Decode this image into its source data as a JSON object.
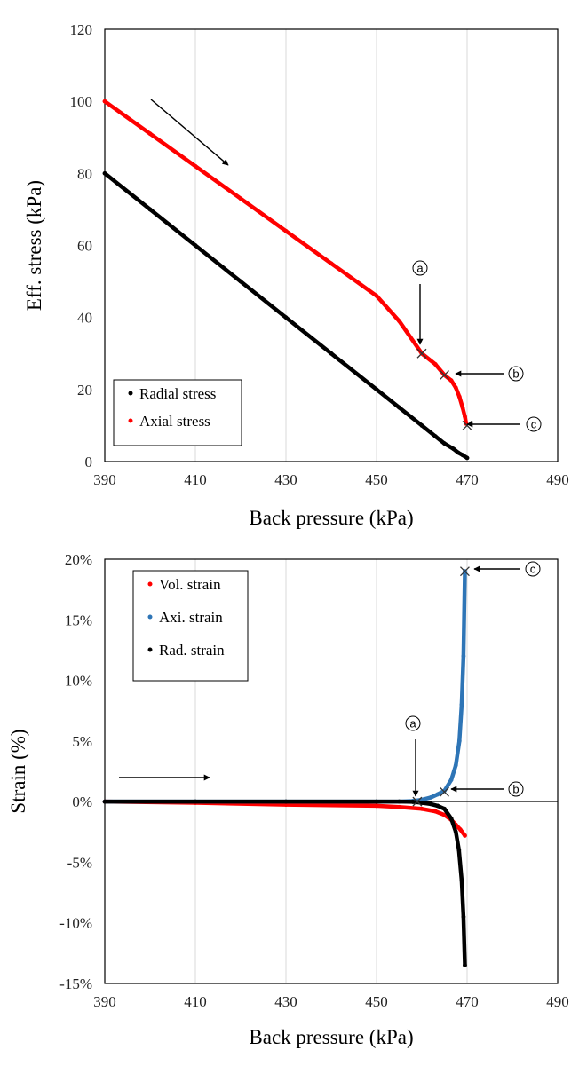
{
  "chart_data": [
    {
      "type": "scatter",
      "xlabel": "Back pressure (kPa)",
      "ylabel": "Eff. stress (kPa)",
      "xlim": [
        390,
        490
      ],
      "ylim": [
        0,
        120
      ],
      "x_ticks": [
        390,
        410,
        430,
        450,
        470,
        490
      ],
      "y_ticks": [
        0,
        20,
        40,
        60,
        80,
        100,
        120
      ],
      "x_tick_labels": [
        "390",
        "410",
        "430",
        "450",
        "470",
        "490"
      ],
      "y_tick_labels": [
        "0",
        "20",
        "40",
        "60",
        "80",
        "100",
        "120"
      ],
      "grid": "vertical",
      "legend_position": "bottom-left",
      "series": [
        {
          "name": "Radial stress",
          "color": "#000000",
          "x": [
            390,
            400,
            410,
            420,
            430,
            440,
            450,
            455,
            460,
            463,
            465,
            467,
            468,
            469,
            470
          ],
          "y": [
            80,
            70,
            60,
            50,
            40,
            30,
            20,
            15,
            10,
            7,
            5,
            3.5,
            2.5,
            1.8,
            1
          ]
        },
        {
          "name": "Axial stress",
          "color": "#ff0000",
          "x": [
            390,
            400,
            410,
            420,
            430,
            440,
            450,
            455,
            460,
            463,
            465,
            466.5,
            467.5,
            468.3,
            469,
            469.5,
            469.8
          ],
          "y": [
            100,
            91,
            82,
            73,
            64,
            55,
            46,
            39,
            30,
            27,
            24,
            22.5,
            20.5,
            18,
            15,
            12.5,
            10.5
          ]
        }
      ],
      "annotations": [
        {
          "label": "ⓐ",
          "x": 460,
          "y": 30,
          "type": "cross"
        },
        {
          "label": "ⓑ",
          "x": 465,
          "y": 24,
          "type": "cross"
        },
        {
          "label": "ⓒ",
          "x": 470,
          "y": 10,
          "type": "cross"
        }
      ],
      "direction_arrow": "down-right"
    },
    {
      "type": "scatter",
      "xlabel": "Back pressure (kPa)",
      "ylabel": "Strain (%)",
      "xlim": [
        390,
        490
      ],
      "ylim": [
        -15,
        20
      ],
      "x_ticks": [
        390,
        410,
        430,
        450,
        470,
        490
      ],
      "y_ticks": [
        -15,
        -10,
        -5,
        0,
        5,
        10,
        15,
        20
      ],
      "x_tick_labels": [
        "390",
        "410",
        "430",
        "450",
        "470",
        "490"
      ],
      "y_tick_labels": [
        "-15%",
        "-10%",
        "-5%",
        "0%",
        "5%",
        "10%",
        "15%",
        "20%"
      ],
      "grid": "vertical",
      "legend_position": "top-left",
      "series": [
        {
          "name": "Vol. strain",
          "color": "#ff0000",
          "x": [
            390,
            410,
            430,
            450,
            455,
            460,
            463,
            465,
            466.5,
            467.5,
            468.5,
            469.5
          ],
          "y": [
            0,
            -0.1,
            -0.25,
            -0.35,
            -0.45,
            -0.6,
            -0.8,
            -1.1,
            -1.5,
            -1.9,
            -2.3,
            -2.8
          ]
        },
        {
          "name": "Axi. strain",
          "color": "#2e75b6",
          "x": [
            390,
            410,
            430,
            450,
            455,
            458,
            460,
            462,
            463.5,
            465,
            466.5,
            467.5,
            468.3,
            468.8,
            469.2,
            469.5
          ],
          "y": [
            0,
            0,
            0,
            0,
            0,
            0.05,
            0.15,
            0.35,
            0.6,
            0.9,
            1.8,
            3,
            5,
            8,
            12,
            19
          ]
        },
        {
          "name": "Rad. strain",
          "color": "#000000",
          "x": [
            390,
            410,
            430,
            450,
            455,
            458,
            460,
            462,
            463.5,
            465,
            466.5,
            467.5,
            468.2,
            468.8,
            469.2,
            469.5
          ],
          "y": [
            0,
            0,
            0,
            0,
            0,
            -0.02,
            -0.1,
            -0.2,
            -0.35,
            -0.6,
            -1.4,
            -2.5,
            -4,
            -6.5,
            -9.5,
            -13.5
          ]
        }
      ],
      "annotations": [
        {
          "label": "ⓐ",
          "x": 459,
          "y": 0,
          "type": "cross"
        },
        {
          "label": "ⓑ",
          "x": 465,
          "y": 0.8,
          "type": "cross"
        },
        {
          "label": "ⓒ",
          "x": 469.5,
          "y": 19,
          "type": "cross"
        }
      ],
      "direction_arrow": "right"
    }
  ]
}
